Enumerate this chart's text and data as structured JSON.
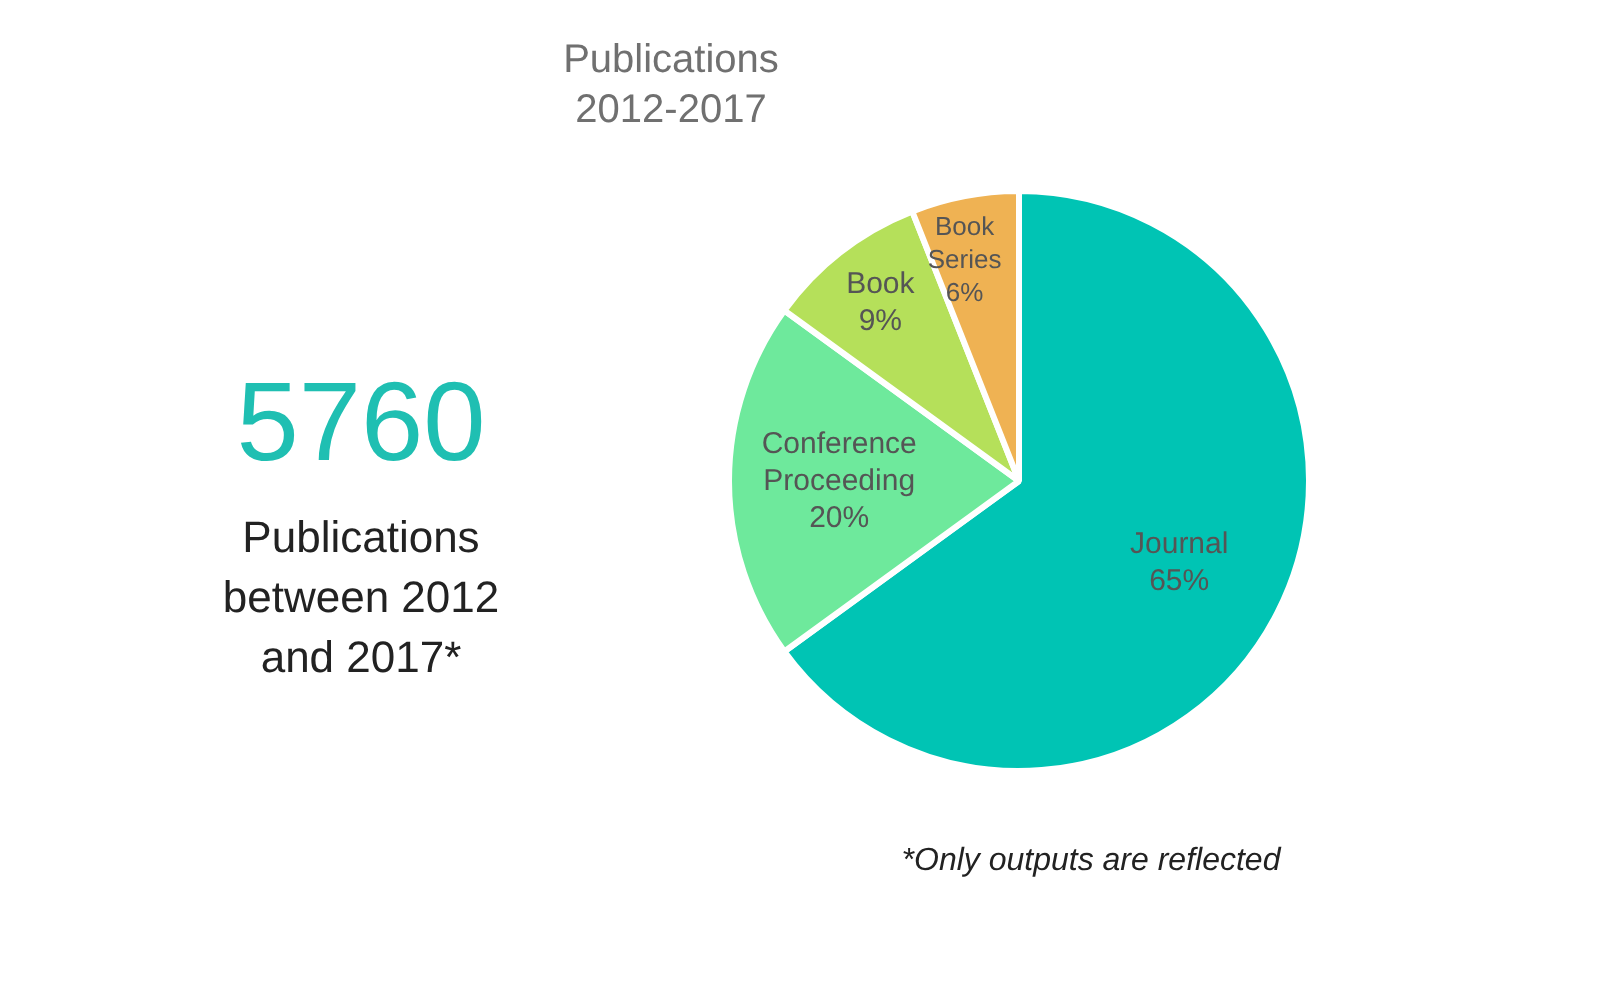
{
  "chart_data": {
    "type": "pie",
    "title": "Publications\n2012-2017",
    "categories": [
      "Journal",
      "Conference Proceeding",
      "Book",
      "Book Series"
    ],
    "values": [
      65,
      20,
      9,
      6
    ],
    "colors": [
      "#00c4b4",
      "#6ee99c",
      "#b5e05a",
      "#efb253"
    ],
    "value_labels": [
      "65%",
      "20%",
      "9%",
      "6%"
    ],
    "annotations": [
      "5760",
      "Publications\nbetween 2012\nand 2017*",
      "*Only outputs are reflected"
    ]
  }
}
